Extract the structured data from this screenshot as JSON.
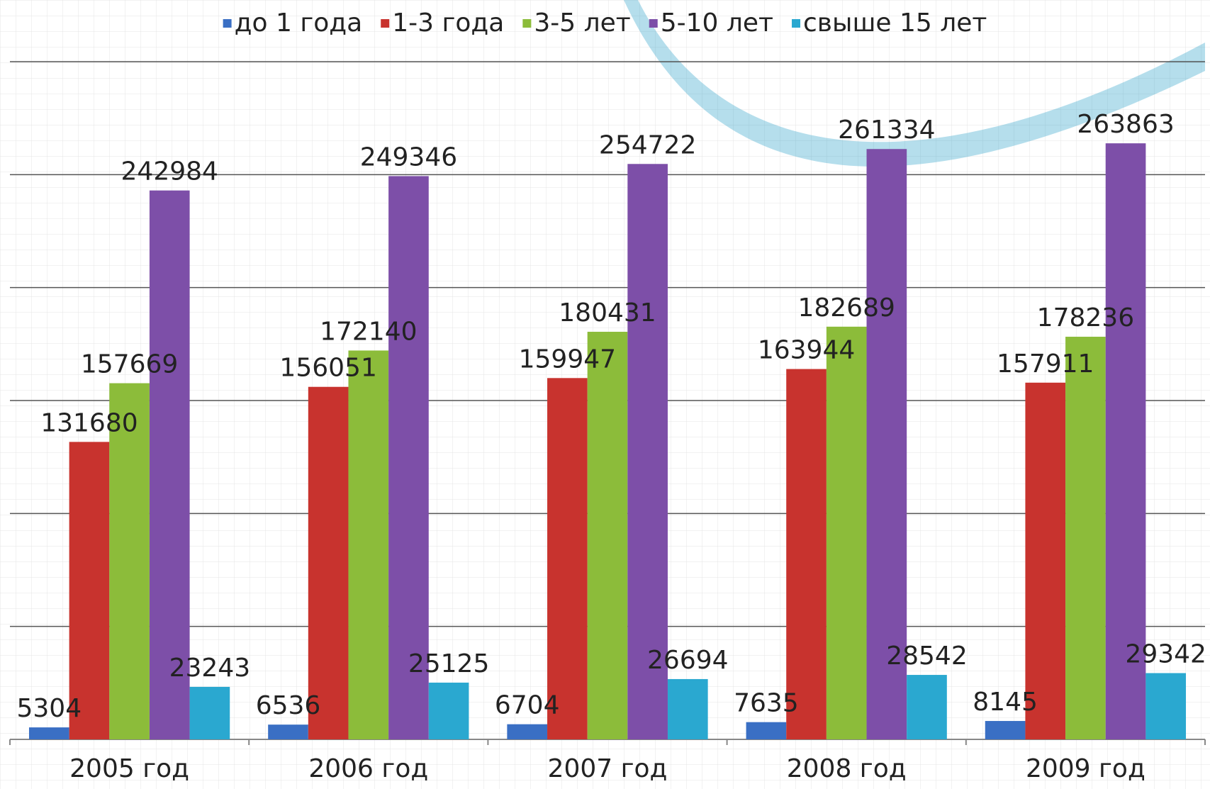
{
  "chart_data": {
    "type": "bar",
    "categories": [
      "2005 год",
      "2006 год",
      "2007 год",
      "2008 год",
      "2009 год"
    ],
    "series": [
      {
        "name": "до 1 года",
        "color": "#3a6fc4",
        "values": [
          5304,
          6536,
          6704,
          7635,
          8145
        ]
      },
      {
        "name": "1-3 года",
        "color": "#c8332e",
        "values": [
          131680,
          156051,
          159947,
          163944,
          157911
        ]
      },
      {
        "name": "3-5 лет",
        "color": "#8cbc3a",
        "values": [
          157669,
          172140,
          180431,
          182689,
          178236
        ]
      },
      {
        "name": "5-10 лет",
        "color": "#7d4fa8",
        "values": [
          242984,
          249346,
          254722,
          261334,
          263863
        ]
      },
      {
        "name": "свыше 15 лет",
        "color": "#2aa8d0",
        "values": [
          23243,
          25125,
          26694,
          28542,
          29342
        ]
      }
    ],
    "ylim": [
      0,
      300000
    ],
    "yticks": [
      0,
      50000,
      100000,
      150000,
      200000,
      250000,
      300000
    ],
    "grid": true,
    "legend": "top"
  }
}
